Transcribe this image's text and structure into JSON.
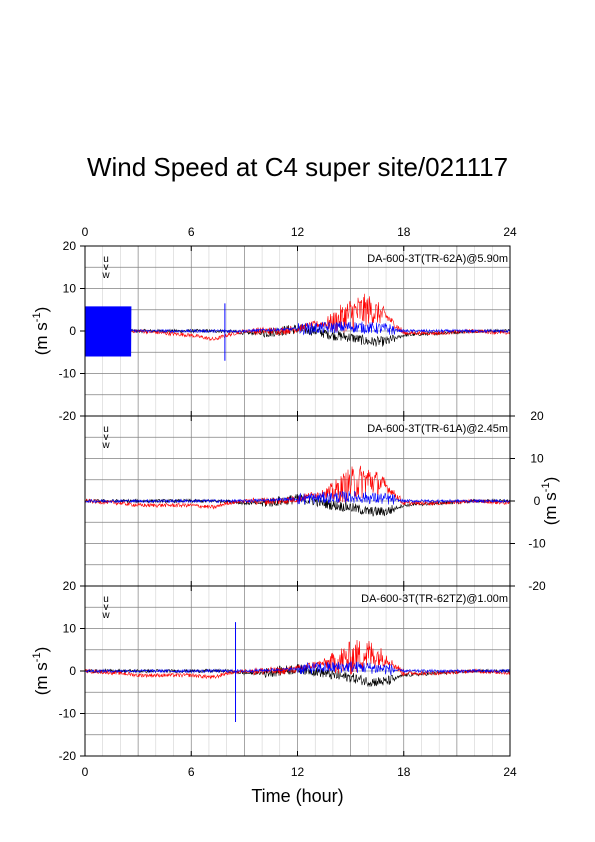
{
  "title": "Wind Speed at C4 super site/021117",
  "colors": {
    "u": "#000000",
    "v": "#ff0000",
    "w": "#0000ff",
    "grid": "#808080"
  },
  "x_axis": {
    "label": "Time (hour)",
    "ticks": [
      "0",
      "6",
      "12",
      "18",
      "24"
    ],
    "range": [
      0,
      24
    ]
  },
  "y_axis_label_main": "(m s",
  "y_axis_label_exp": "-1",
  "y_axis_label_close": ")",
  "chart_data": [
    {
      "type": "line",
      "instrument": "DA-600-3T(TR-62A)@5.90m",
      "legend": [
        "u",
        "v",
        "w"
      ],
      "xlabel": "Time (hour)",
      "ylabel": "(m s-1)",
      "xlim": [
        0,
        24
      ],
      "ylim": [
        -20,
        20
      ],
      "y_ticks": [
        "20",
        "10",
        "0",
        "-10",
        "-20"
      ],
      "y_axis_side": "left",
      "x_ticks_top": true,
      "grid": true,
      "series": [
        {
          "name": "u",
          "x": [
            0,
            2.6,
            3,
            6,
            8,
            9,
            10,
            11,
            12,
            13,
            14,
            15,
            16,
            17,
            18,
            20,
            22,
            24
          ],
          "y": [
            0,
            0,
            0,
            0,
            0,
            -0.5,
            -0.5,
            0,
            0.5,
            0,
            -1,
            -1.5,
            -2.5,
            -2.5,
            -1,
            -0.5,
            0,
            0
          ]
        },
        {
          "name": "v",
          "x": [
            0,
            2.6,
            3,
            6,
            7.3,
            8,
            9,
            10,
            11,
            12,
            13,
            14,
            15,
            16,
            17,
            18,
            20,
            22,
            24
          ],
          "y": [
            0,
            0,
            0,
            -1,
            -2,
            -1,
            0,
            0,
            0,
            0.5,
            1.5,
            2,
            4,
            5,
            3.5,
            -0.5,
            -0.5,
            0,
            -0.5
          ]
        },
        {
          "name": "w",
          "x": [
            0,
            2.6,
            3,
            6,
            7.9,
            8,
            9,
            12,
            15,
            17,
            18,
            24
          ],
          "y": [
            0,
            0,
            0,
            0,
            0,
            0,
            0,
            0.5,
            1,
            0.5,
            0,
            0
          ]
        }
      ],
      "events": [
        {
          "series": "w",
          "x_range": [
            0,
            2.6
          ],
          "ymin": -6,
          "ymax": 5.8,
          "note": "dense oscillation"
        },
        {
          "series": "w",
          "x": 7.9,
          "ymin": -7,
          "ymax": 6.5,
          "note": "spike"
        }
      ]
    },
    {
      "type": "line",
      "instrument": "DA-600-3T(TR-61A)@2.45m",
      "legend": [
        "u",
        "v",
        "w"
      ],
      "xlim": [
        0,
        24
      ],
      "ylim": [
        -20,
        20
      ],
      "y_ticks": [
        "20",
        "10",
        "0",
        "-10",
        "-20"
      ],
      "y_axis_side": "right",
      "ylabel": "(m s-1)",
      "grid": true,
      "series": [
        {
          "name": "u",
          "x": [
            0,
            3,
            6,
            8,
            9,
            10,
            11,
            12,
            13,
            14,
            15,
            16,
            17,
            18,
            20,
            22,
            24
          ],
          "y": [
            0,
            0,
            0,
            0,
            -0.5,
            -0.5,
            0,
            0.5,
            0,
            -1,
            -1.5,
            -2.5,
            -2.5,
            -1,
            -0.5,
            0,
            0
          ]
        },
        {
          "name": "v",
          "x": [
            0,
            2,
            3,
            6,
            7.3,
            8,
            9,
            10,
            11,
            12,
            13,
            14,
            15,
            16,
            17,
            18,
            20,
            22,
            24
          ],
          "y": [
            0,
            -0.5,
            -1,
            -1,
            -1.5,
            -0.5,
            0,
            0,
            0,
            0.5,
            1.5,
            2,
            4,
            5,
            3.5,
            -0.5,
            -0.5,
            0,
            -0.5
          ]
        },
        {
          "name": "w",
          "x": [
            0,
            3,
            6,
            9,
            12,
            15,
            17,
            18,
            24
          ],
          "y": [
            0,
            0,
            0,
            0,
            0.5,
            1,
            0.5,
            0,
            0
          ]
        }
      ]
    },
    {
      "type": "line",
      "instrument": "DA-600-3T(TR-62TZ)@1.00m",
      "legend": [
        "u",
        "v",
        "w"
      ],
      "xlabel": "Time (hour)",
      "ylabel": "(m s-1)",
      "xlim": [
        0,
        24
      ],
      "ylim": [
        -20,
        20
      ],
      "y_ticks": [
        "20",
        "10",
        "0",
        "-10",
        "-20"
      ],
      "y_axis_side": "left",
      "x_ticks_bottom": true,
      "grid": true,
      "series": [
        {
          "name": "u",
          "x": [
            0,
            3,
            6,
            8,
            9,
            10,
            11,
            12,
            13,
            14,
            15,
            16,
            17,
            18,
            20,
            22,
            24
          ],
          "y": [
            0,
            0,
            0,
            0,
            -0.5,
            -0.5,
            0,
            0.5,
            0,
            -1,
            -1.5,
            -2.5,
            -2.5,
            -1,
            -0.5,
            0,
            0
          ]
        },
        {
          "name": "v",
          "x": [
            0,
            2,
            3,
            6,
            7.3,
            8,
            9,
            10,
            11,
            12,
            13,
            14,
            15,
            16,
            17,
            18,
            20,
            22,
            24
          ],
          "y": [
            0,
            -0.5,
            -1,
            -1,
            -1.5,
            -0.5,
            0,
            0,
            0,
            0.5,
            1.5,
            2,
            3,
            4,
            3,
            -0.5,
            -0.5,
            0,
            -0.5
          ]
        },
        {
          "name": "w",
          "x": [
            0,
            3,
            6,
            9,
            12,
            15,
            17,
            18,
            24
          ],
          "y": [
            0,
            0,
            0,
            0,
            0.5,
            1,
            0.5,
            0,
            0
          ]
        }
      ],
      "events": [
        {
          "series": "w",
          "x": 8.5,
          "ymin": -12,
          "ymax": 11.5,
          "note": "spike"
        }
      ]
    }
  ]
}
